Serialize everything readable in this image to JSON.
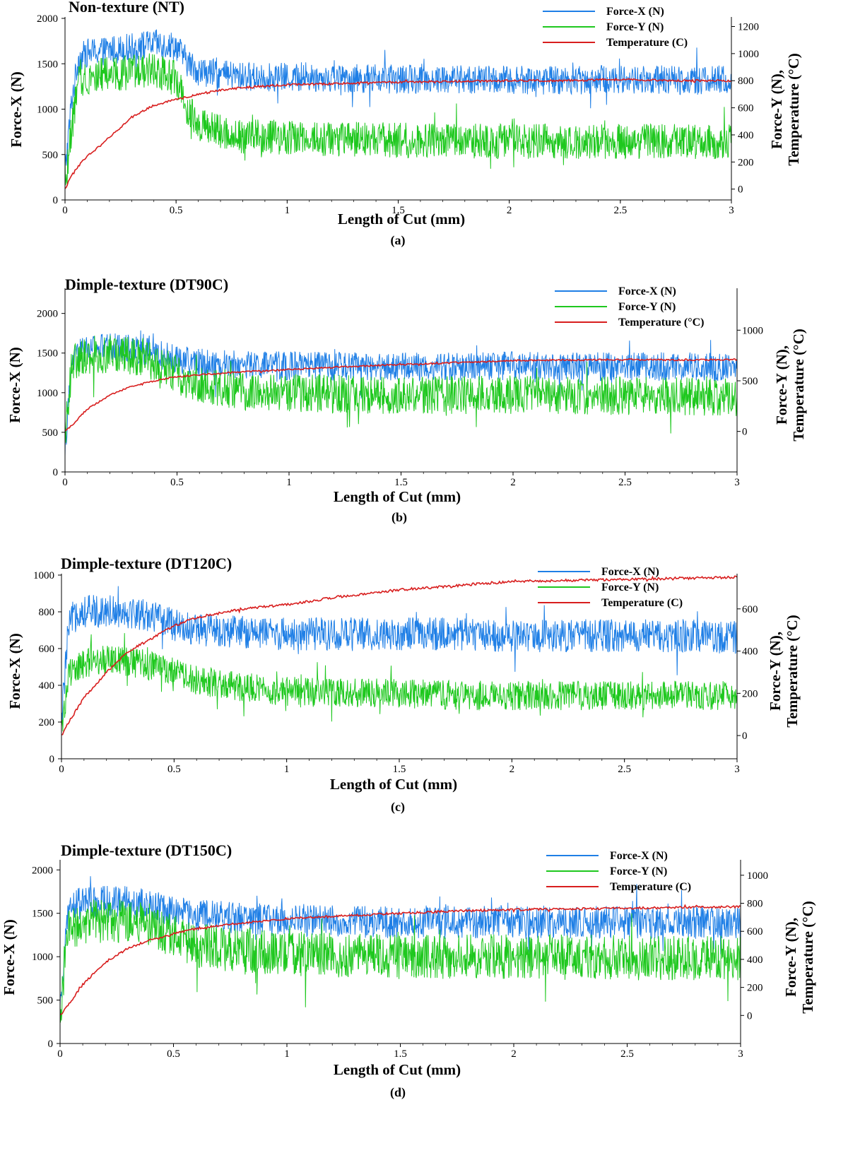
{
  "figure": {
    "colors": {
      "force_x": "#1f7fe6",
      "force_y": "#1ec81e",
      "temperature": "#d81e1e",
      "axis": "#000000"
    },
    "x_axis_label": "Length of Cut (mm)",
    "y_left_label": "Force-X (N)",
    "y_right_label_line1": "Force-Y (N),",
    "y_right_label_line2": "Temperature (°C)"
  },
  "chart_data": [
    {
      "type": "line",
      "title": "Non-texture (NT)",
      "caption": "(a)",
      "xlabel": "Length of Cut (mm)",
      "ylabel": "Force-X (N)",
      "ylabel_right": "Force-Y (N), Temperature (°C)",
      "xlim": [
        0,
        3
      ],
      "x_ticks": [
        "0",
        "0.5",
        "1",
        "1.5",
        "2",
        "2.5",
        "3"
      ],
      "ylim_left": [
        0,
        2000
      ],
      "y_ticks_left": [
        "0",
        "500",
        "1000",
        "1500",
        "2000"
      ],
      "ylim_right": [
        -80,
        1260
      ],
      "y_ticks_right": [
        "0",
        "200",
        "400",
        "600",
        "800",
        "1000",
        "1200"
      ],
      "legend_position": "top-right",
      "legend": [
        "Force-X (N)",
        "Force-Y (N)",
        "Temperature (C)"
      ],
      "x": [
        0,
        0.03,
        0.06,
        0.1,
        0.2,
        0.3,
        0.4,
        0.5,
        0.55,
        0.6,
        0.7,
        0.8,
        1.0,
        1.25,
        1.5,
        1.75,
        2.0,
        2.25,
        2.5,
        2.75,
        3.0
      ],
      "series": [
        {
          "name": "Force-X (N)",
          "axis": "left",
          "values": [
            300,
            1100,
            1550,
            1620,
            1650,
            1680,
            1720,
            1700,
            1520,
            1420,
            1380,
            1360,
            1350,
            1340,
            1330,
            1330,
            1320,
            1320,
            1330,
            1320,
            1320
          ],
          "amplitude": 160
        },
        {
          "name": "Force-Y (N)",
          "axis": "right",
          "values": [
            0,
            450,
            780,
            830,
            850,
            860,
            880,
            820,
            600,
            480,
            420,
            390,
            380,
            370,
            360,
            360,
            350,
            350,
            350,
            350,
            350
          ],
          "amplitude": 130
        },
        {
          "name": "Temperature (C)",
          "axis": "right",
          "values": [
            0,
            100,
            170,
            240,
            380,
            530,
            620,
            660,
            680,
            700,
            730,
            750,
            770,
            780,
            790,
            795,
            800,
            800,
            810,
            800,
            800
          ],
          "amplitude": 8
        }
      ]
    },
    {
      "type": "line",
      "title": "Dimple-texture (DT90C)",
      "caption": "(b)",
      "xlabel": "Length of Cut (mm)",
      "ylabel": "Force-X (N)",
      "ylabel_right": "Force-Y (N), Temperature (°C)",
      "xlim": [
        0,
        3
      ],
      "x_ticks": [
        "0",
        "0.5",
        "1",
        "1.5",
        "2",
        "2.5",
        "3"
      ],
      "ylim_left": [
        0,
        2300
      ],
      "y_ticks_left": [
        "0",
        "500",
        "1000",
        "1500",
        "2000"
      ],
      "ylim_right": [
        -400,
        1400
      ],
      "y_ticks_right": [
        "0",
        "500",
        "1000"
      ],
      "legend_position": "top-right",
      "legend": [
        "Force-X (N)",
        "Force-Y (N)",
        "Temperature (°C)"
      ],
      "x": [
        0,
        0.03,
        0.06,
        0.1,
        0.2,
        0.3,
        0.4,
        0.5,
        0.6,
        0.8,
        1.0,
        1.25,
        1.5,
        1.75,
        2.0,
        2.25,
        2.5,
        2.75,
        3.0
      ],
      "series": [
        {
          "name": "Force-X (N)",
          "axis": "left",
          "values": [
            300,
            1350,
            1500,
            1550,
            1580,
            1560,
            1500,
            1420,
            1380,
            1350,
            1340,
            1330,
            1330,
            1330,
            1340,
            1330,
            1330,
            1330,
            1320
          ],
          "amplitude": 180
        },
        {
          "name": "Force-Y (N)",
          "axis": "right",
          "values": [
            0,
            650,
            720,
            750,
            770,
            740,
            680,
            560,
            460,
            400,
            380,
            370,
            360,
            360,
            360,
            350,
            350,
            350,
            340
          ],
          "amplitude": 190
        },
        {
          "name": "Temperature (°C)",
          "axis": "right",
          "values": [
            0,
            60,
            130,
            220,
            360,
            450,
            500,
            540,
            560,
            590,
            610,
            640,
            660,
            680,
            700,
            705,
            710,
            705,
            710
          ],
          "amplitude": 8
        }
      ]
    },
    {
      "type": "line",
      "title": "Dimple-texture (DT120C)",
      "caption": "(c)",
      "xlabel": "Length of Cut (mm)",
      "ylabel": "Force-X (N)",
      "ylabel_right": "Force-Y (N), Temperature (°C)",
      "xlim": [
        0,
        3
      ],
      "x_ticks": [
        "0",
        "0.5",
        "1",
        "1.5",
        "2",
        "2.5",
        "3"
      ],
      "ylim_left": [
        0,
        1000
      ],
      "y_ticks_left": [
        "0",
        "200",
        "400",
        "600",
        "800",
        "1000"
      ],
      "ylim_right": [
        -110,
        760
      ],
      "y_ticks_right": [
        "0",
        "200",
        "400",
        "600"
      ],
      "legend_position": "top-right",
      "legend": [
        "Force-X (N)",
        "Force-Y (N)",
        "Temperature (C)"
      ],
      "x": [
        0,
        0.03,
        0.06,
        0.1,
        0.2,
        0.3,
        0.4,
        0.5,
        0.6,
        0.8,
        1.0,
        1.25,
        1.5,
        1.75,
        2.0,
        2.25,
        2.5,
        2.75,
        3.0
      ],
      "series": [
        {
          "name": "Force-X (N)",
          "axis": "left",
          "values": [
            200,
            700,
            800,
            800,
            810,
            800,
            780,
            730,
            700,
            690,
            680,
            680,
            680,
            680,
            670,
            670,
            670,
            670,
            660
          ],
          "amplitude": 90
        },
        {
          "name": "Force-Y (N)",
          "axis": "right",
          "values": [
            0,
            290,
            320,
            340,
            360,
            350,
            330,
            300,
            260,
            230,
            210,
            200,
            200,
            190,
            190,
            190,
            190,
            190,
            190
          ],
          "amplitude": 70
        },
        {
          "name": "Temperature (C)",
          "axis": "right",
          "values": [
            0,
            60,
            110,
            180,
            300,
            400,
            460,
            520,
            560,
            600,
            620,
            660,
            690,
            710,
            730,
            735,
            740,
            745,
            750
          ],
          "amplitude": 6
        }
      ]
    },
    {
      "type": "line",
      "title": "Dimple-texture (DT150C)",
      "caption": "(d)",
      "xlabel": "Length of Cut (mm)",
      "ylabel": "Force-X (N)",
      "ylabel_right": "Force-Y (N), Temperature (°C)",
      "xlim": [
        0,
        3
      ],
      "x_ticks": [
        "0",
        "0.5",
        "1",
        "1.5",
        "2",
        "2.5",
        "3"
      ],
      "ylim_left": [
        0,
        2100
      ],
      "y_ticks_left": [
        "0",
        "500",
        "1000",
        "1500",
        "2000"
      ],
      "ylim_right": [
        -200,
        1100
      ],
      "y_ticks_right": [
        "0",
        "200",
        "400",
        "600",
        "800",
        "1000"
      ],
      "legend_position": "top-right",
      "legend": [
        "Force-X (N)",
        "Force-Y (N)",
        "Temperature (C)"
      ],
      "x": [
        0,
        0.03,
        0.06,
        0.1,
        0.2,
        0.3,
        0.4,
        0.5,
        0.6,
        0.8,
        1.0,
        1.25,
        1.5,
        1.75,
        2.0,
        2.25,
        2.5,
        2.75,
        3.0
      ],
      "series": [
        {
          "name": "Force-X (N)",
          "axis": "left",
          "values": [
            300,
            1450,
            1600,
            1620,
            1640,
            1620,
            1580,
            1520,
            1480,
            1440,
            1420,
            1410,
            1400,
            1400,
            1400,
            1400,
            1390,
            1390,
            1380
          ],
          "amplitude": 190
        },
        {
          "name": "Force-Y (N)",
          "axis": "right",
          "values": [
            0,
            560,
            640,
            660,
            680,
            670,
            640,
            560,
            500,
            460,
            440,
            430,
            420,
            420,
            420,
            420,
            410,
            410,
            410
          ],
          "amplitude": 160
        },
        {
          "name": "Temperature (C)",
          "axis": "right",
          "values": [
            0,
            60,
            130,
            220,
            380,
            480,
            540,
            580,
            620,
            660,
            690,
            710,
            730,
            745,
            755,
            760,
            765,
            770,
            775
          ],
          "amplitude": 8
        }
      ]
    }
  ]
}
